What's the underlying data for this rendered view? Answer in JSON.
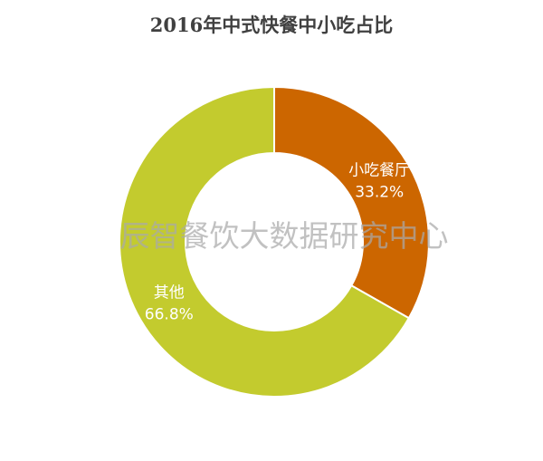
{
  "chart_data": {
    "type": "pie",
    "variant": "donut",
    "title": "2016年中式快餐中小吃占比",
    "slices": [
      {
        "label": "小吃餐厅",
        "value": 33.2,
        "value_label": "33.2%",
        "color": "#CC6600"
      },
      {
        "label": "其他",
        "value": 66.8,
        "value_label": "66.8%",
        "color": "#C3CB2E"
      }
    ],
    "start_angle_deg": 0,
    "direction": "clockwise",
    "legend": "none",
    "labels_inside": true
  },
  "watermark": "辰智餐饮大数据研究中心"
}
